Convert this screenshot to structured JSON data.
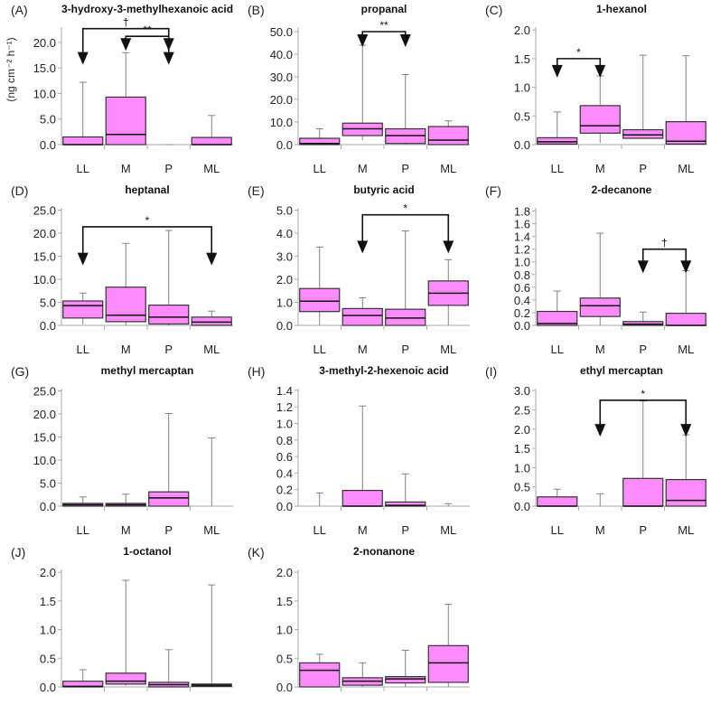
{
  "y_axis_label": "(ng cm⁻² h⁻¹)",
  "colors": {
    "box_fill": "#ff8cff",
    "box_edge": "#333333",
    "whisker": "#808080",
    "axis": "#aaaaaa",
    "bracket": "#111111"
  },
  "chart_data": [
    {
      "type": "box",
      "label": "(A)",
      "title": "3-hydroxy-3-methylhexanoic acid",
      "categories": [
        "LL",
        "M",
        "P",
        "ML"
      ],
      "ylim": [
        0,
        23
      ],
      "tick_max": 20,
      "tick_step": 5,
      "decimals": 1,
      "boxes": [
        [
          0,
          0,
          0,
          1.5,
          12.2
        ],
        [
          0,
          0,
          2,
          9.3,
          18
        ],
        [
          0,
          0,
          0,
          0,
          0
        ],
        [
          0,
          0,
          0,
          1.4,
          5.7
        ]
      ],
      "annotations": [
        {
          "symbol": "†",
          "from": 0,
          "to": 2,
          "level": 22.7,
          "tip": 16
        },
        {
          "symbol": "**",
          "from": 1,
          "to": 2,
          "level": 21.2,
          "tip": 18.7
        }
      ]
    },
    {
      "type": "box",
      "label": "(B)",
      "title": "propanal",
      "categories": [
        "LL",
        "M",
        "P",
        "ML"
      ],
      "ylim": [
        0,
        52
      ],
      "tick_max": 50,
      "tick_step": 10,
      "decimals": 1,
      "boxes": [
        [
          0,
          0,
          0.5,
          2.8,
          7
        ],
        [
          2,
          4,
          7,
          9.5,
          44
        ],
        [
          0,
          0.5,
          4,
          7,
          31
        ],
        [
          0,
          0,
          2,
          8,
          10.5
        ]
      ],
      "annotations": [
        {
          "symbol": "**",
          "from": 1,
          "to": 2,
          "level": 50,
          "tip": 44
        }
      ]
    },
    {
      "type": "box",
      "label": "(C)",
      "title": "1-hexanol",
      "categories": [
        "LL",
        "M",
        "P",
        "ML"
      ],
      "ylim": [
        0,
        2.05
      ],
      "tick_max": 2,
      "tick_step": 0.5,
      "decimals": 1,
      "boxes": [
        [
          0,
          0.01,
          0.05,
          0.12,
          0.57
        ],
        [
          0.03,
          0.2,
          0.33,
          0.68,
          1.2
        ],
        [
          0.1,
          0.11,
          0.17,
          0.26,
          1.56
        ],
        [
          0,
          0.01,
          0.06,
          0.4,
          1.55
        ]
      ],
      "annotations": [
        {
          "symbol": "*",
          "from": 0,
          "to": 1,
          "level": 1.5,
          "tip": 1.2
        }
      ]
    },
    {
      "type": "box",
      "label": "(D)",
      "title": "heptanal",
      "categories": [
        "LL",
        "M",
        "P",
        "ML"
      ],
      "ylim": [
        0,
        25.5
      ],
      "tick_max": 25,
      "tick_step": 5,
      "decimals": 1,
      "boxes": [
        [
          0.2,
          1.6,
          4.3,
          5.3,
          7
        ],
        [
          0,
          0.8,
          2.2,
          8.3,
          17.8
        ],
        [
          0,
          0.3,
          1.8,
          4.4,
          20.6
        ],
        [
          0,
          0,
          0.7,
          1.8,
          3.1
        ]
      ],
      "annotations": [
        {
          "symbol": "*",
          "from": 0,
          "to": 3,
          "level": 21.4,
          "tip": 13.4
        }
      ]
    },
    {
      "type": "box",
      "label": "(E)",
      "title": "butyric acid",
      "categories": [
        "LL",
        "M",
        "P",
        "ML"
      ],
      "ylim": [
        0,
        5.1
      ],
      "tick_max": 5,
      "tick_step": 1,
      "decimals": 1,
      "boxes": [
        [
          0,
          0.6,
          1.05,
          1.6,
          3.4
        ],
        [
          0,
          0,
          0.43,
          0.73,
          1.2
        ],
        [
          0,
          0,
          0.32,
          0.7,
          4.1
        ],
        [
          0,
          0.87,
          1.4,
          1.93,
          2.85
        ]
      ],
      "annotations": [
        {
          "symbol": "*",
          "from": 1,
          "to": 3,
          "level": 4.8,
          "tip": 3.2
        }
      ]
    },
    {
      "type": "box",
      "label": "(F)",
      "title": "2-decanone",
      "categories": [
        "LL",
        "M",
        "P",
        "ML"
      ],
      "ylim": [
        0,
        1.85
      ],
      "tick_max": 1.8,
      "tick_step": 0.2,
      "decimals": 1,
      "boxes": [
        [
          0,
          0,
          0.03,
          0.22,
          0.54
        ],
        [
          0,
          0.14,
          0.31,
          0.43,
          1.45
        ],
        [
          0,
          0,
          0.02,
          0.06,
          0.21
        ],
        [
          0,
          0,
          0,
          0.19,
          0.86
        ]
      ],
      "annotations": [
        {
          "symbol": "†",
          "from": 2,
          "to": 3,
          "level": 1.2,
          "tip": 0.85
        }
      ]
    },
    {
      "type": "box",
      "label": "(G)",
      "title": "methyl mercaptan",
      "categories": [
        "LL",
        "M",
        "P",
        "ML"
      ],
      "ylim": [
        0,
        25.5
      ],
      "tick_max": 25,
      "tick_step": 5,
      "decimals": 1,
      "boxes": [
        [
          0,
          0,
          0.3,
          0.6,
          2
        ],
        [
          0,
          0,
          0.3,
          0.6,
          2.6
        ],
        [
          0,
          0,
          1.8,
          3.1,
          20.1
        ],
        [
          0,
          0,
          0,
          0,
          14.8
        ]
      ],
      "annotations": []
    },
    {
      "type": "box",
      "label": "(H)",
      "title": "3-methyl-2-hexenoic acid",
      "categories": [
        "LL",
        "M",
        "P",
        "ML"
      ],
      "ylim": [
        0,
        1.42
      ],
      "tick_max": 1.4,
      "tick_step": 0.2,
      "decimals": 1,
      "boxes": [
        [
          0,
          0,
          0,
          0,
          0.16
        ],
        [
          0,
          0,
          0,
          0.19,
          1.21
        ],
        [
          0,
          0,
          0.01,
          0.05,
          0.39
        ],
        [
          0,
          0,
          0,
          0,
          0.03
        ]
      ],
      "annotations": []
    },
    {
      "type": "box",
      "label": "(I)",
      "title": "ethyl mercaptan",
      "categories": [
        "LL",
        "M",
        "P",
        "ML"
      ],
      "ylim": [
        0,
        3.05
      ],
      "tick_max": 3,
      "tick_step": 0.5,
      "decimals": 1,
      "boxes": [
        [
          0,
          0,
          0,
          0.24,
          0.44
        ],
        [
          0,
          0,
          0,
          0,
          0.32
        ],
        [
          0,
          0,
          0,
          0.72,
          2.73
        ],
        [
          0,
          0,
          0.15,
          0.69,
          1.85
        ]
      ],
      "annotations": [
        {
          "symbol": "*",
          "from": 1,
          "to": 3,
          "level": 2.75,
          "tip": 1.85
        }
      ]
    },
    {
      "type": "box",
      "label": "(J)",
      "title": "1-octanol",
      "categories": [
        "LL",
        "M",
        "P",
        "ML"
      ],
      "ylim": [
        0,
        2.05
      ],
      "tick_max": 2,
      "tick_step": 0.5,
      "decimals": 1,
      "boxes": [
        [
          0,
          0,
          0.01,
          0.1,
          0.3
        ],
        [
          0.02,
          0.05,
          0.1,
          0.24,
          1.86
        ],
        [
          0,
          0,
          0.04,
          0.08,
          0.65
        ],
        [
          0,
          0.01,
          0.03,
          0.05,
          1.78
        ]
      ],
      "annotations": []
    },
    {
      "type": "box",
      "label": "(K)",
      "title": "2-nonanone",
      "categories": [
        "LL",
        "M",
        "P",
        "ML"
      ],
      "ylim": [
        0,
        2.05
      ],
      "tick_max": 2,
      "tick_step": 0.5,
      "decimals": 1,
      "boxes": [
        [
          0,
          0,
          0.29,
          0.42,
          0.57
        ],
        [
          0,
          0.03,
          0.1,
          0.16,
          0.42
        ],
        [
          0,
          0.07,
          0.14,
          0.18,
          0.64
        ],
        [
          0,
          0.08,
          0.42,
          0.72,
          1.44
        ]
      ],
      "annotations": []
    }
  ]
}
